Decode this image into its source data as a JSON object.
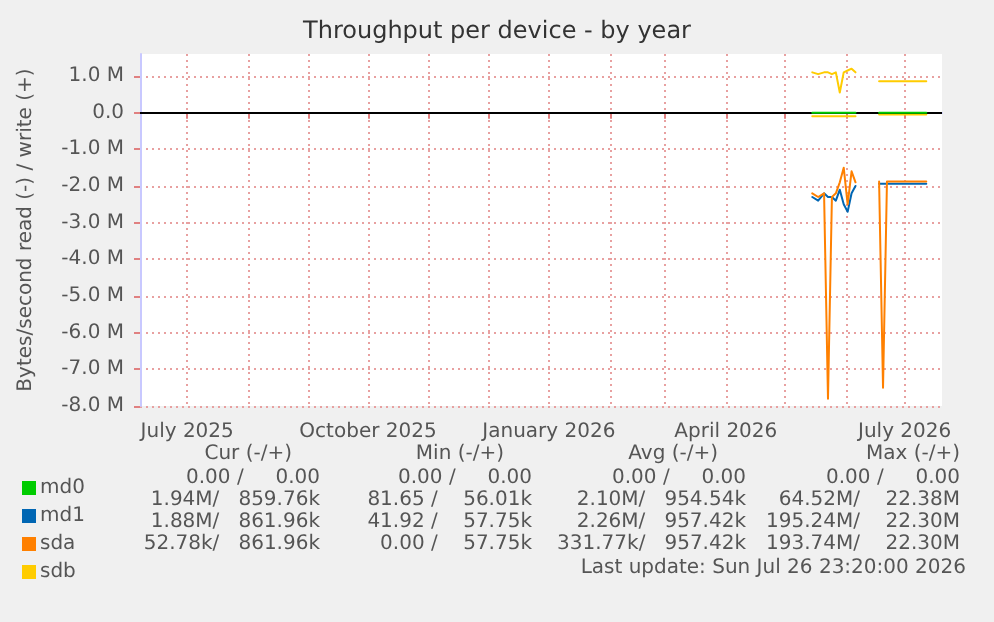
{
  "chart_data": {
    "type": "line",
    "title": "Throughput per device - by year",
    "ylabel": "Bytes/second read (-) / write (+)",
    "x": [
      "2026-05-15",
      "2026-05-18",
      "2026-05-21",
      "2026-05-23",
      "2026-05-25",
      "2026-05-27",
      "2026-05-29",
      "2026-05-31",
      "2026-06-02",
      "2026-06-04",
      "2026-06-06",
      "2026-06-12",
      "2026-06-18",
      "2026-06-20",
      "2026-06-22",
      "2026-06-30",
      "2026-07-12"
    ],
    "series": [
      {
        "name": "md0",
        "color": "#00cc00",
        "values": [
          0,
          0,
          0,
          0,
          0,
          0,
          0,
          0,
          0,
          0,
          0,
          null,
          0,
          0,
          0,
          0,
          0
        ]
      },
      {
        "name": "md1",
        "color": "#0066b3",
        "values": [
          -2.3,
          -2.4,
          -2.2,
          -2.3,
          -2.3,
          -2.4,
          -2.1,
          -2.5,
          -2.7,
          -2.2,
          -2.0,
          null,
          -1.94,
          -1.94,
          -1.94,
          -1.94,
          -1.94
        ]
      },
      {
        "name": "sda",
        "color": "#ff8000",
        "values": [
          -2.2,
          -2.3,
          -2.2,
          -7.8,
          -2.3,
          -2.2,
          -1.9,
          -1.5,
          -2.5,
          -1.6,
          -1.9,
          null,
          -1.88,
          -7.5,
          -1.88,
          -1.88,
          -1.88
        ]
      },
      {
        "name": "sdb",
        "color": "#ffcc00",
        "values": [
          -0.1,
          -0.1,
          -0.1,
          -0.1,
          -0.1,
          -0.1,
          -0.1,
          -0.1,
          -0.1,
          -0.1,
          -0.1,
          null,
          -0.05,
          -0.05,
          -0.05,
          -0.05,
          -0.05
        ]
      },
      {
        "color": "#ffcc00",
        "values": [
          1.1,
          1.05,
          1.1,
          1.1,
          1.05,
          1.1,
          0.55,
          1.1,
          1.15,
          1.2,
          1.1,
          null,
          0.86,
          0.86,
          0.86,
          0.86,
          0.86
        ]
      }
    ],
    "xlim": [
      "2025-06-07",
      "2026-07-20"
    ],
    "xticks": [
      {
        "value": "2025-07-01",
        "label": "July 2025"
      },
      {
        "value": "2025-08-01",
        "label": null
      },
      {
        "value": "2025-09-01",
        "label": null
      },
      {
        "value": "2025-10-01",
        "label": "October 2025"
      },
      {
        "value": "2025-11-01",
        "label": null
      },
      {
        "value": "2025-12-01",
        "label": null
      },
      {
        "value": "2026-01-01",
        "label": "January 2026"
      },
      {
        "value": "2026-02-01",
        "label": null
      },
      {
        "value": "2026-03-01",
        "label": null
      },
      {
        "value": "2026-04-01",
        "label": "April 2026"
      },
      {
        "value": "2026-05-01",
        "label": null
      },
      {
        "value": "2026-06-01",
        "label": null
      },
      {
        "value": "2026-07-01",
        "label": "July 2026"
      }
    ],
    "ylim": [
      -8,
      1.6
    ],
    "yticks": [
      {
        "value": -8,
        "label": "-8.0 M"
      },
      {
        "value": -7,
        "label": "-7.0 M"
      },
      {
        "value": -6,
        "label": "-6.0 M"
      },
      {
        "value": -5,
        "label": "-5.0 M"
      },
      {
        "value": -4,
        "label": "-4.0 M"
      },
      {
        "value": -3,
        "label": "-3.0 M"
      },
      {
        "value": -2,
        "label": "-2.0 M"
      },
      {
        "value": -1,
        "label": "-1.0 M"
      },
      {
        "value": 0,
        "label": "0.0"
      },
      {
        "value": 1,
        "label": "1.0 M"
      }
    ],
    "ref_lines": [
      {
        "axis": "y",
        "value": 0,
        "color": "#000000"
      }
    ],
    "grid": true,
    "legend": "bottom left",
    "marker": "none",
    "line_style": "solid",
    "annotations": [
      "Cur (-/+)",
      "Min (-/+)",
      "Avg (-/+)",
      "Max (-/+)",
      "0.00 /     0.00",
      "0.00 /     0.00",
      "0.00 /     0.00",
      "0.00 /     0.00",
      "1.94M/   859.76k",
      "81.65 /    56.01k",
      "2.10M/   954.54k",
      "64.52M/    22.38M",
      "1.88M/   861.96k",
      "41.92 /    57.75k",
      "2.26M/   957.42k",
      "195.24M/    22.30M",
      "52.78k/   861.96k",
      "0.00 /    57.75k",
      "331.77k/   957.42k",
      "193.74M/    22.30M",
      "Last update: Sun Jul 26 23:20:00 2026"
    ]
  }
}
